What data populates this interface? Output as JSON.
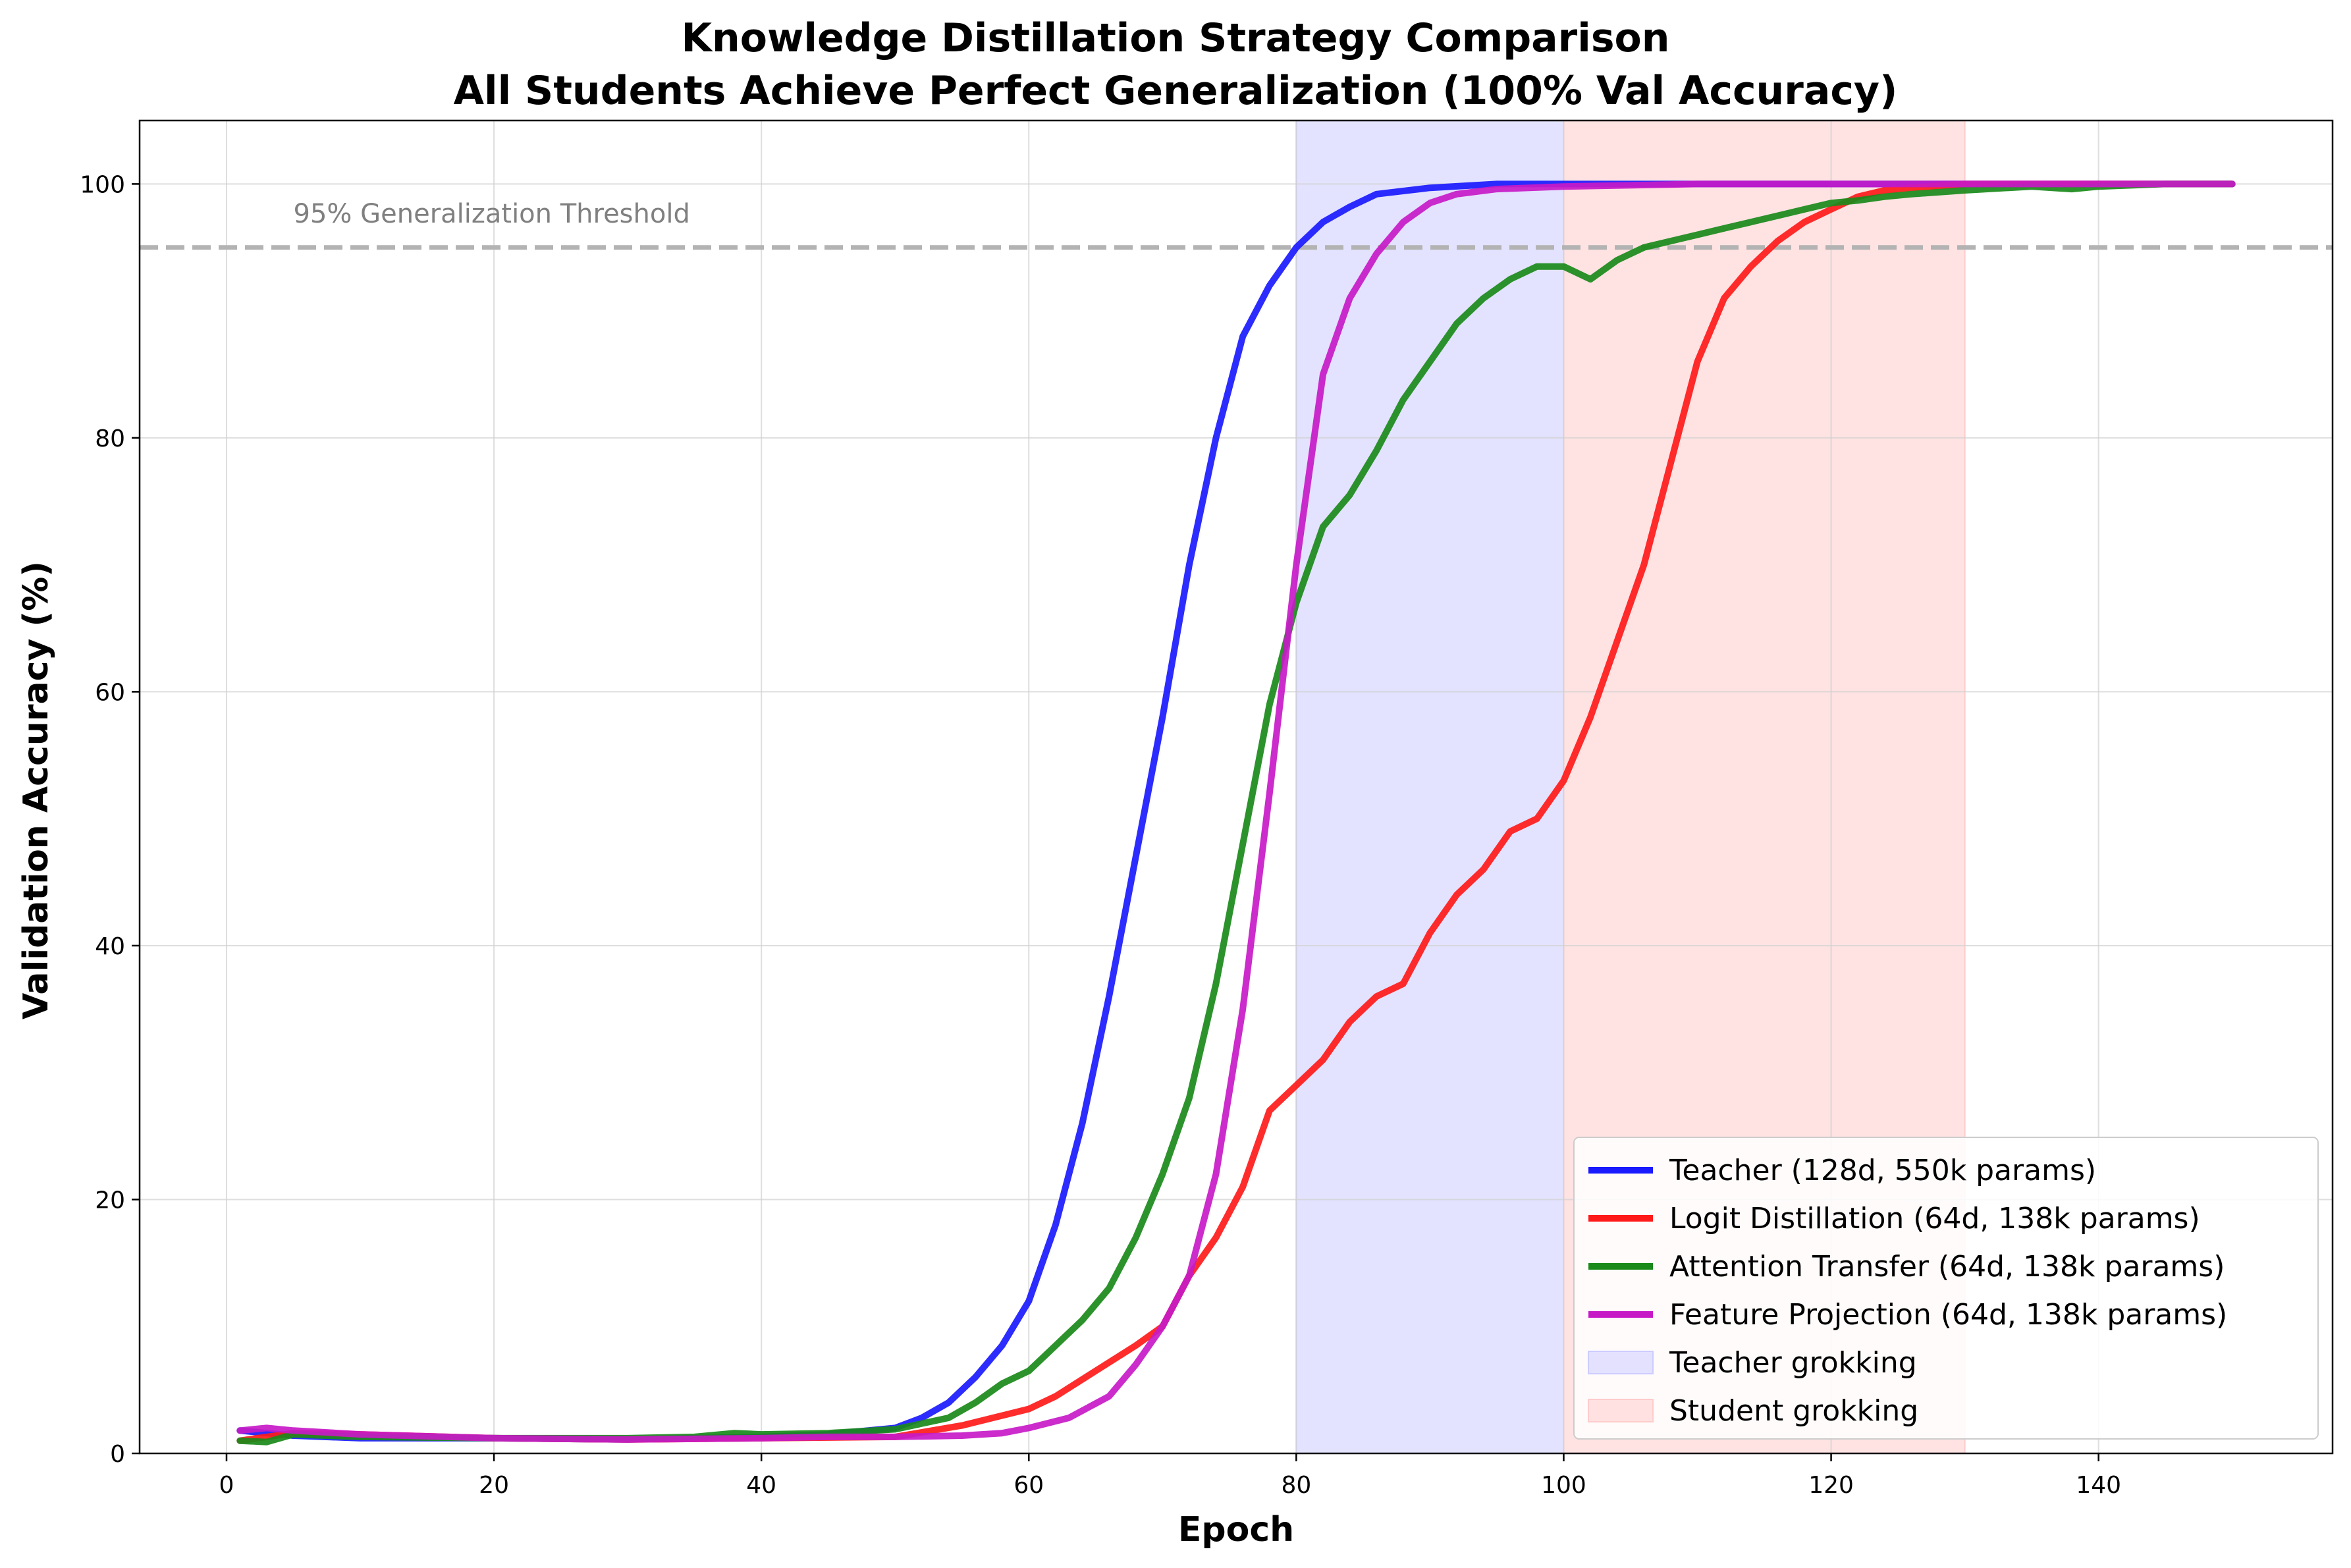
{
  "chart_data": {
    "type": "line",
    "title_line1": "Knowledge Distillation Strategy Comparison",
    "title_line2": "All Students Achieve Perfect Generalization (100% Val Accuracy)",
    "xlabel": "Epoch",
    "ylabel": "Validation Accuracy (%)",
    "xlim": [
      -6.5,
      157.5
    ],
    "ylim": [
      0,
      105
    ],
    "xticks": [
      0,
      20,
      40,
      60,
      80,
      100,
      120,
      140
    ],
    "yticks": [
      0,
      20,
      40,
      60,
      80,
      100
    ],
    "grid": true,
    "legend_position": "lower-right",
    "threshold": {
      "value": 95,
      "label": "95% Generalization Threshold",
      "color": "#b3b3b3"
    },
    "spans": [
      {
        "name": "Teacher grokking",
        "x0": 80,
        "x1": 100,
        "color": "#ccccff"
      },
      {
        "name": "Student grokking",
        "x0": 100,
        "x1": 130,
        "color": "#ffcccc"
      }
    ],
    "series": [
      {
        "name": "Teacher (128d, 550k params)",
        "color": "#1a1aff",
        "points": [
          [
            1,
            1.8
          ],
          [
            5,
            1.4
          ],
          [
            10,
            1.2
          ],
          [
            20,
            1.2
          ],
          [
            30,
            1.1
          ],
          [
            40,
            1.3
          ],
          [
            45,
            1.5
          ],
          [
            50,
            2.0
          ],
          [
            52,
            2.8
          ],
          [
            54,
            4.0
          ],
          [
            56,
            6.0
          ],
          [
            58,
            8.5
          ],
          [
            60,
            12
          ],
          [
            62,
            18
          ],
          [
            64,
            26
          ],
          [
            66,
            36
          ],
          [
            68,
            47
          ],
          [
            70,
            58
          ],
          [
            72,
            70
          ],
          [
            74,
            80
          ],
          [
            76,
            88
          ],
          [
            78,
            92
          ],
          [
            80,
            95
          ],
          [
            82,
            97
          ],
          [
            84,
            98.2
          ],
          [
            86,
            99.2
          ],
          [
            90,
            99.7
          ],
          [
            95,
            100
          ],
          [
            100,
            100
          ],
          [
            110,
            100
          ],
          [
            120,
            100
          ],
          [
            130,
            100
          ],
          [
            140,
            100
          ],
          [
            150,
            100
          ]
        ]
      },
      {
        "name": "Logit Distillation (64d, 138k params)",
        "color": "#ff1a1a",
        "points": [
          [
            1,
            1.0
          ],
          [
            5,
            1.6
          ],
          [
            10,
            1.5
          ],
          [
            20,
            1.2
          ],
          [
            30,
            1.1
          ],
          [
            40,
            1.2
          ],
          [
            50,
            1.3
          ],
          [
            55,
            2.2
          ],
          [
            60,
            3.5
          ],
          [
            62,
            4.5
          ],
          [
            65,
            6.5
          ],
          [
            68,
            8.5
          ],
          [
            70,
            10
          ],
          [
            72,
            14
          ],
          [
            74,
            17
          ],
          [
            76,
            21
          ],
          [
            78,
            27
          ],
          [
            80,
            29
          ],
          [
            82,
            31
          ],
          [
            84,
            34
          ],
          [
            86,
            36
          ],
          [
            88,
            37
          ],
          [
            90,
            41
          ],
          [
            92,
            44
          ],
          [
            94,
            46
          ],
          [
            96,
            49
          ],
          [
            98,
            50
          ],
          [
            100,
            53
          ],
          [
            102,
            58
          ],
          [
            104,
            64
          ],
          [
            106,
            70
          ],
          [
            108,
            78
          ],
          [
            110,
            86
          ],
          [
            112,
            91
          ],
          [
            114,
            93.5
          ],
          [
            116,
            95.5
          ],
          [
            118,
            97
          ],
          [
            120,
            98
          ],
          [
            122,
            99
          ],
          [
            124,
            99.5
          ],
          [
            126,
            99.7
          ],
          [
            130,
            100
          ],
          [
            140,
            100
          ],
          [
            150,
            100
          ]
        ]
      },
      {
        "name": "Attention Transfer (64d, 138k params)",
        "color": "#1a8a1a",
        "points": [
          [
            1,
            1.0
          ],
          [
            3,
            0.9
          ],
          [
            5,
            1.5
          ],
          [
            10,
            1.3
          ],
          [
            20,
            1.2
          ],
          [
            30,
            1.2
          ],
          [
            35,
            1.3
          ],
          [
            38,
            1.6
          ],
          [
            40,
            1.5
          ],
          [
            45,
            1.6
          ],
          [
            50,
            1.9
          ],
          [
            54,
            2.8
          ],
          [
            56,
            4.0
          ],
          [
            58,
            5.5
          ],
          [
            60,
            6.5
          ],
          [
            62,
            8.5
          ],
          [
            64,
            10.5
          ],
          [
            66,
            13
          ],
          [
            68,
            17
          ],
          [
            70,
            22
          ],
          [
            72,
            28
          ],
          [
            74,
            37
          ],
          [
            76,
            48
          ],
          [
            78,
            59
          ],
          [
            80,
            67
          ],
          [
            82,
            73
          ],
          [
            84,
            75.5
          ],
          [
            86,
            79
          ],
          [
            88,
            83
          ],
          [
            90,
            86
          ],
          [
            92,
            89
          ],
          [
            94,
            91
          ],
          [
            96,
            92.5
          ],
          [
            98,
            93.5
          ],
          [
            100,
            93.5
          ],
          [
            102,
            92.5
          ],
          [
            104,
            94
          ],
          [
            106,
            95
          ],
          [
            108,
            95.5
          ],
          [
            110,
            96
          ],
          [
            112,
            96.5
          ],
          [
            114,
            97
          ],
          [
            116,
            97.5
          ],
          [
            118,
            98
          ],
          [
            120,
            98.5
          ],
          [
            122,
            98.7
          ],
          [
            124,
            99
          ],
          [
            126,
            99.2
          ],
          [
            130,
            99.5
          ],
          [
            135,
            99.8
          ],
          [
            138,
            99.6
          ],
          [
            140,
            99.8
          ],
          [
            145,
            100
          ],
          [
            150,
            100
          ]
        ]
      },
      {
        "name": "Feature Projection (64d, 138k params)",
        "color": "#c71ac7",
        "points": [
          [
            1,
            1.8
          ],
          [
            3,
            2.0
          ],
          [
            5,
            1.8
          ],
          [
            10,
            1.5
          ],
          [
            20,
            1.2
          ],
          [
            30,
            1.1
          ],
          [
            40,
            1.2
          ],
          [
            45,
            1.3
          ],
          [
            50,
            1.3
          ],
          [
            55,
            1.4
          ],
          [
            58,
            1.6
          ],
          [
            60,
            2.0
          ],
          [
            63,
            2.8
          ],
          [
            66,
            4.5
          ],
          [
            68,
            7
          ],
          [
            70,
            10
          ],
          [
            72,
            14
          ],
          [
            74,
            22
          ],
          [
            76,
            35
          ],
          [
            78,
            52
          ],
          [
            80,
            70
          ],
          [
            82,
            85
          ],
          [
            84,
            91
          ],
          [
            86,
            94.5
          ],
          [
            88,
            97
          ],
          [
            90,
            98.5
          ],
          [
            92,
            99.2
          ],
          [
            95,
            99.6
          ],
          [
            100,
            99.8
          ],
          [
            110,
            100
          ],
          [
            120,
            100
          ],
          [
            130,
            100
          ],
          [
            140,
            100
          ],
          [
            150,
            100
          ]
        ]
      }
    ]
  }
}
